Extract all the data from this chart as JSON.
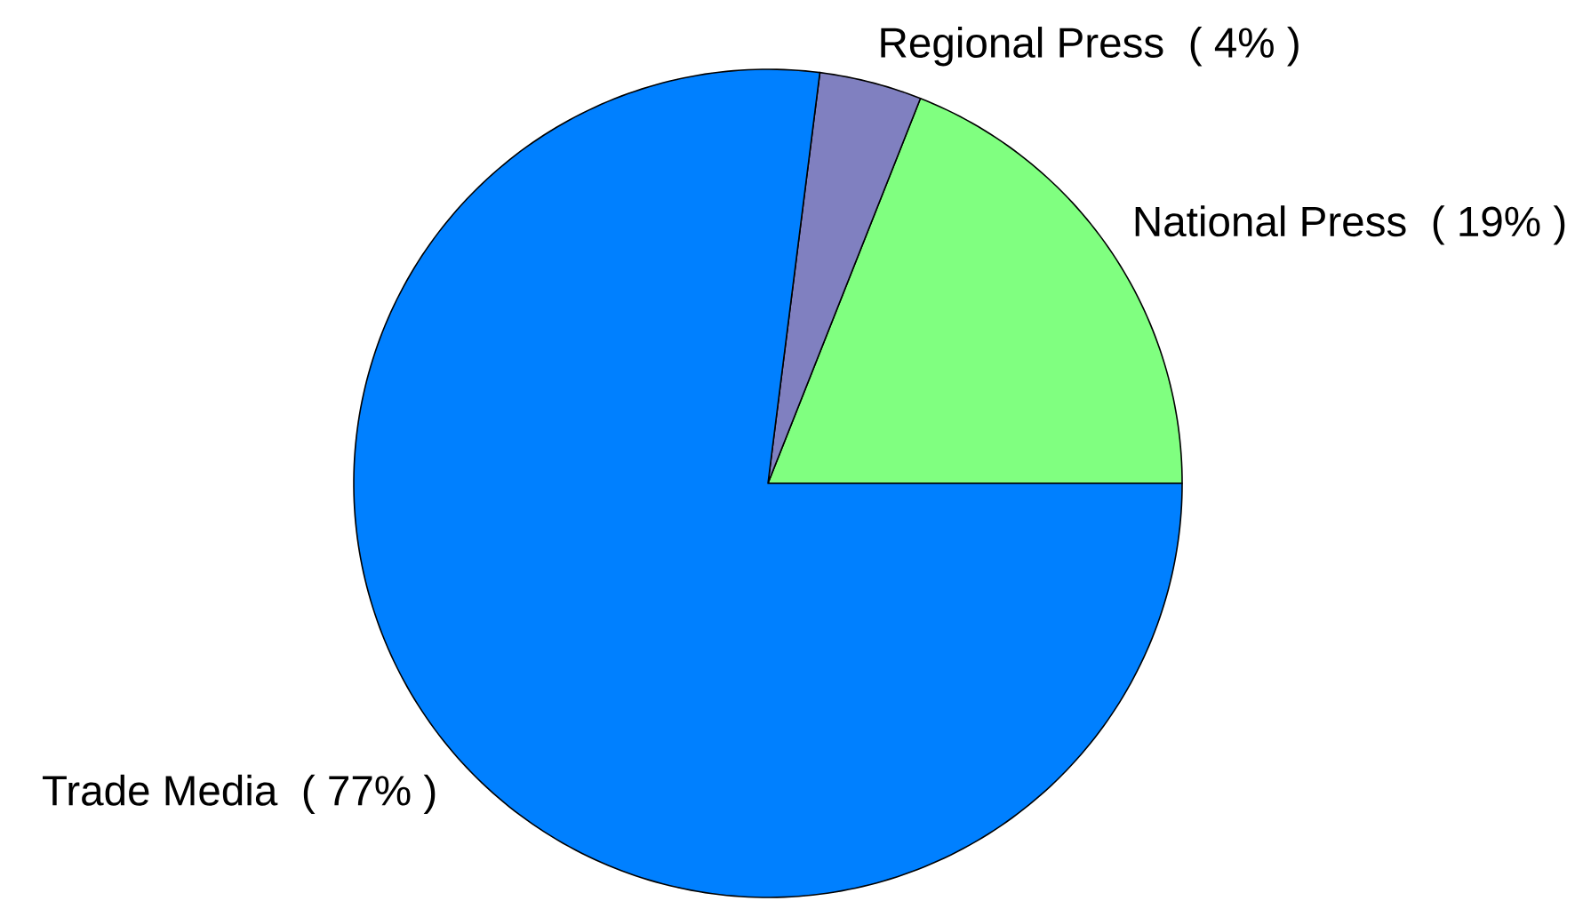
{
  "chart_data": {
    "type": "pie",
    "categories": [
      "National Press",
      "Regional Press",
      "Trade Media"
    ],
    "values": [
      19,
      4,
      77
    ],
    "colors": [
      "#80ff80",
      "#8080c0",
      "#0080ff"
    ],
    "value_labels": [
      "( 19% )",
      "( 4% )",
      "( 77% )"
    ]
  }
}
